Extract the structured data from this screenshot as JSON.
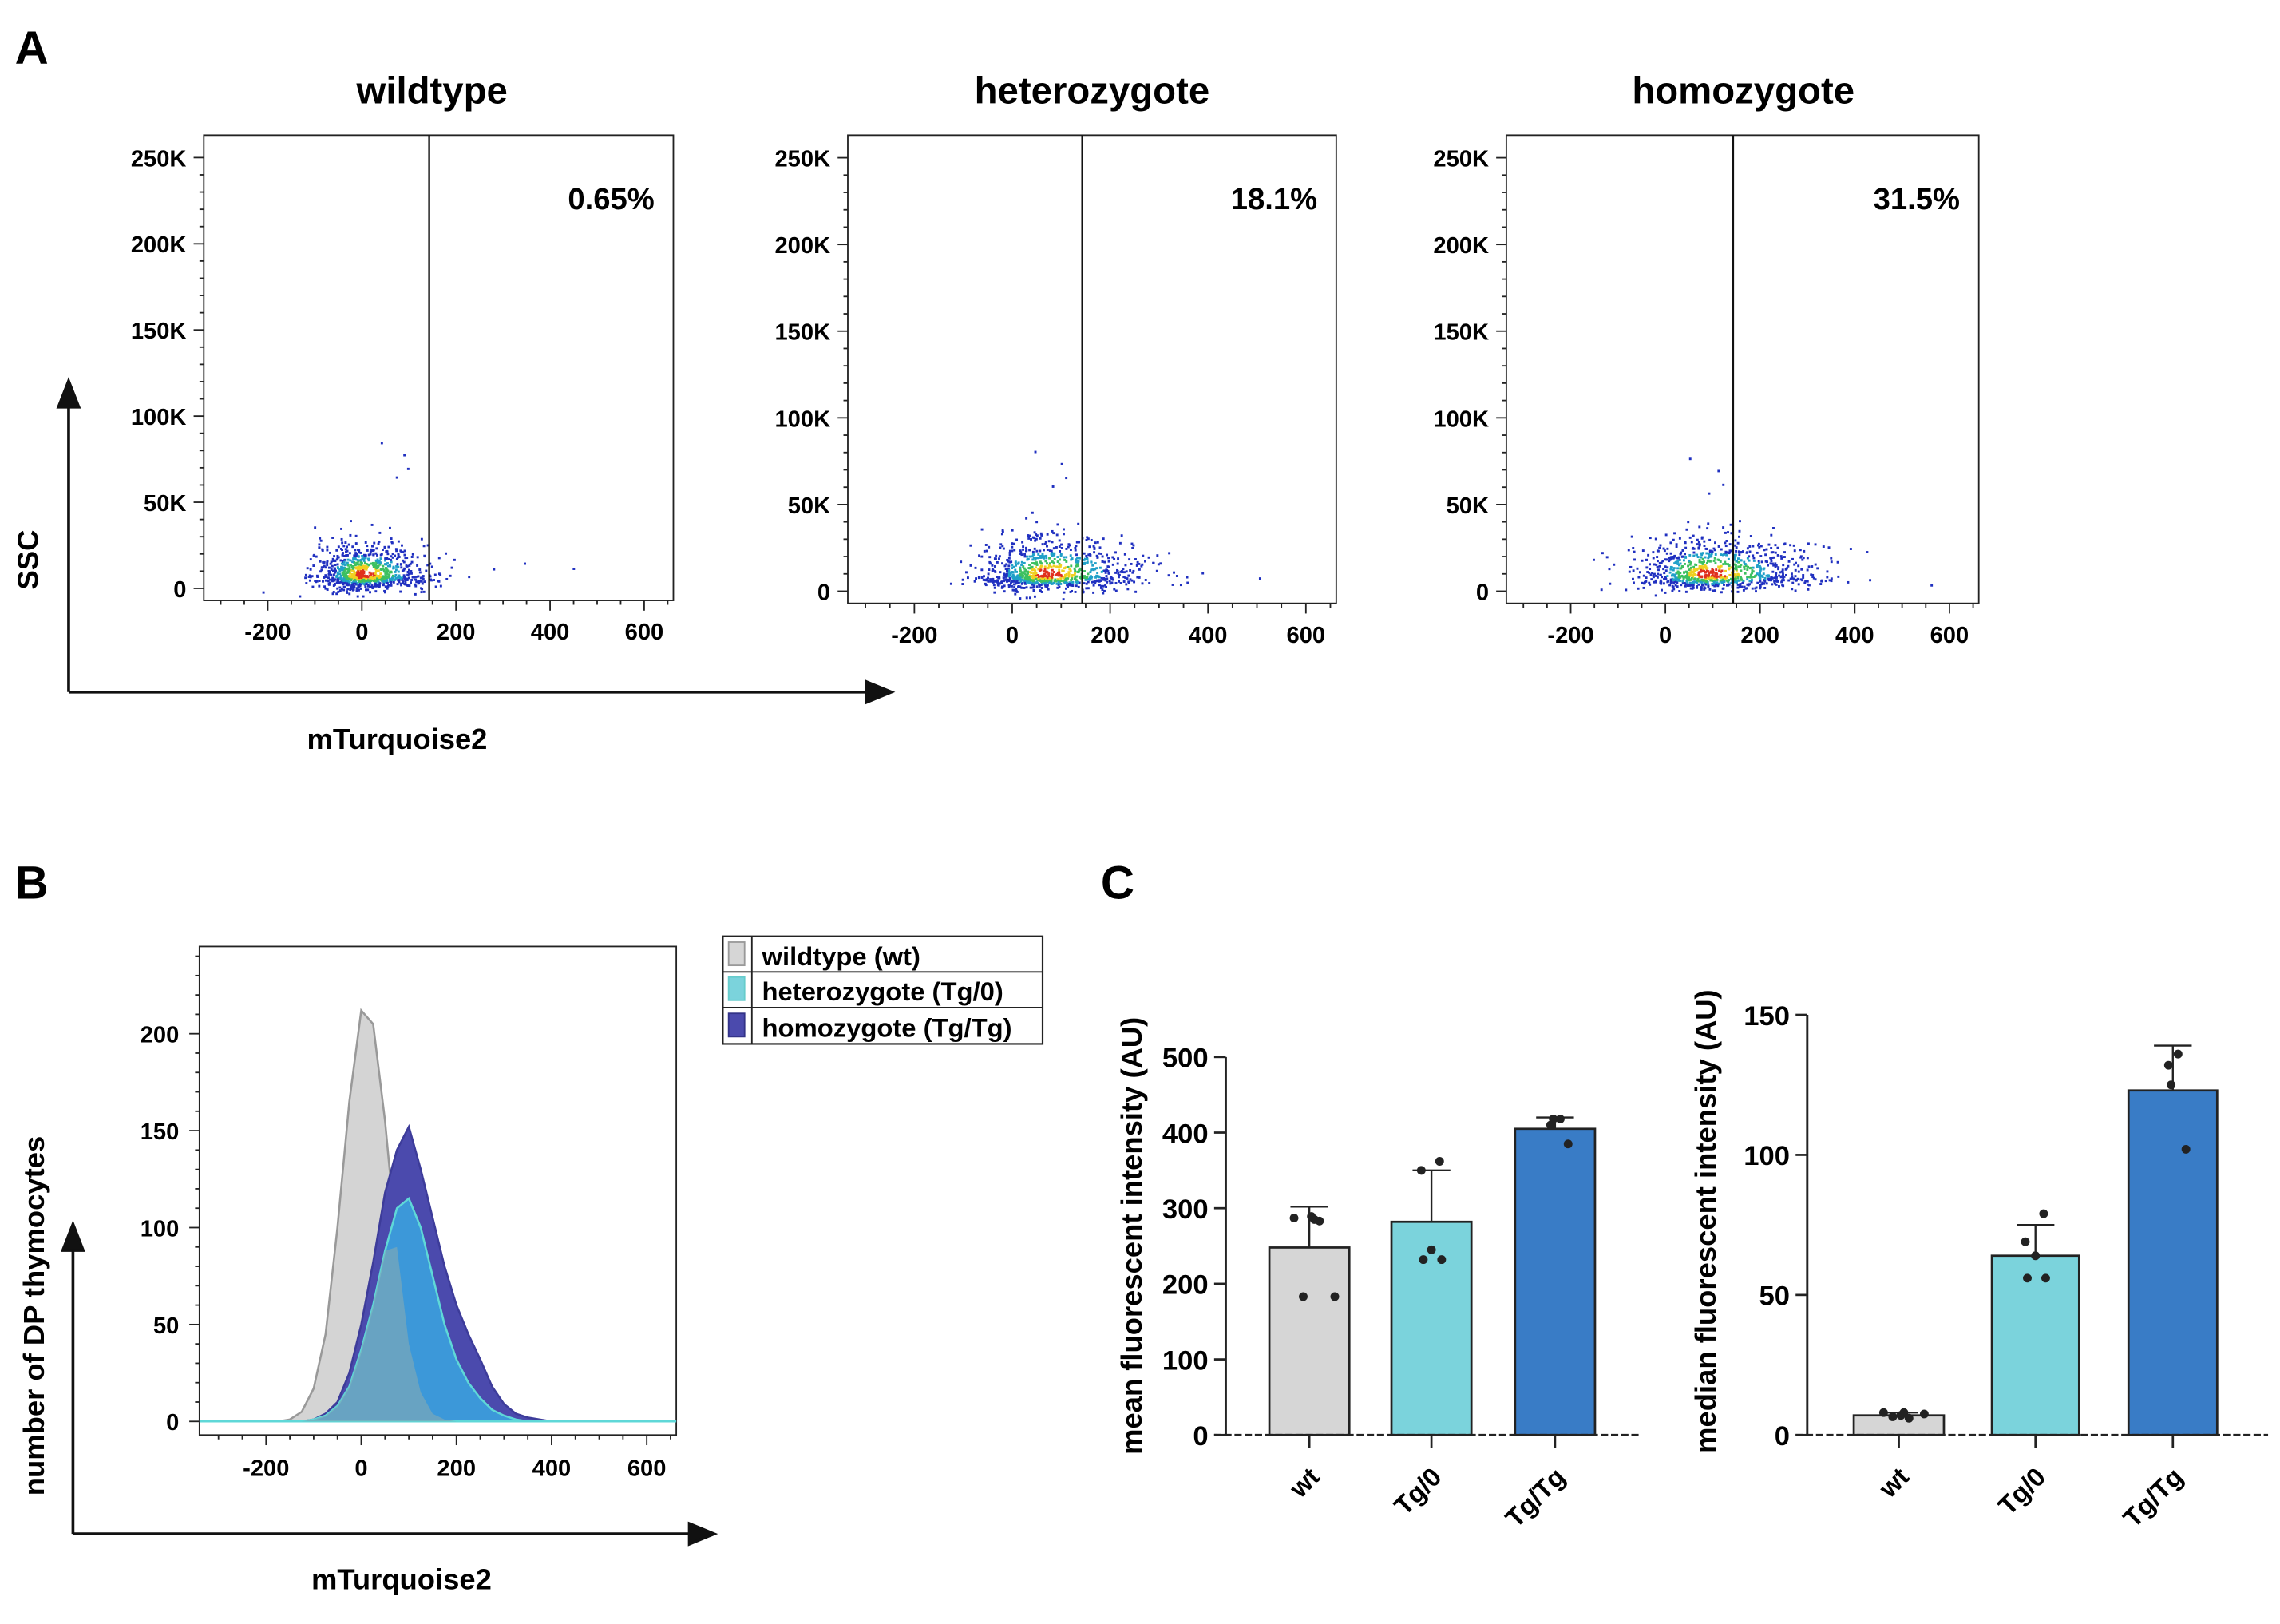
{
  "panel_labels": {
    "a": "A",
    "b": "B",
    "c": "C"
  },
  "colors": {
    "wt": "#d6d6d6",
    "het": "#7bd3dc",
    "homo": "#397cc6",
    "homo_hist": "#4b4aad",
    "het_hist": "#4aabe2"
  },
  "chart_data": [
    {
      "type": "scatter",
      "panel": "A",
      "y_axis_label": "SSC",
      "x_axis_label": "mTurquoise2",
      "x_ticks": [
        "-200",
        "0",
        "200",
        "400",
        "600"
      ],
      "x_tick_values": [
        -200,
        0,
        200,
        400,
        600
      ],
      "y_ticks": [
        "0",
        "50K",
        "100K",
        "150K",
        "200K",
        "250K"
      ],
      "y_tick_values": [
        0,
        50,
        100,
        150,
        200,
        250
      ],
      "xlim": [
        -336,
        662
      ],
      "ylim": [
        -7,
        263
      ],
      "gate_x": 143,
      "plots": [
        {
          "title": "wildtype",
          "percent": "0.65%",
          "center_x": 0,
          "spread_x": 55,
          "center_y": 8,
          "spread_y": 8
        },
        {
          "title": "heterozygote",
          "percent": "18.1%",
          "center_x": 70,
          "spread_x": 75,
          "center_y": 10,
          "spread_y": 9
        },
        {
          "title": "homozygote",
          "percent": "31.5%",
          "center_x": 90,
          "spread_x": 85,
          "center_y": 10,
          "spread_y": 9
        }
      ]
    },
    {
      "type": "area",
      "panel": "B",
      "ylabel": "number of DP thymocytes",
      "xlabel": "mTurquoise2",
      "x_ticks": [
        "-200",
        "0",
        "200",
        "400",
        "600"
      ],
      "x_tick_values": [
        -200,
        0,
        200,
        400,
        600
      ],
      "y_ticks": [
        "0",
        "50",
        "100",
        "150",
        "200"
      ],
      "y_tick_values": [
        0,
        50,
        100,
        150,
        200
      ],
      "xlim": [
        -340,
        662
      ],
      "ylim": [
        -7,
        245
      ],
      "x": [
        -200,
        -175,
        -150,
        -125,
        -100,
        -75,
        -50,
        -25,
        0,
        25,
        50,
        75,
        100,
        125,
        150,
        175,
        200,
        225,
        250,
        275,
        300,
        325,
        350,
        375,
        400,
        425,
        450
      ],
      "series": [
        {
          "name": "wildtype (wt)",
          "key": "wt",
          "values": [
            0,
            0,
            1,
            5,
            17,
            45,
            100,
            165,
            212,
            205,
            155,
            90,
            40,
            15,
            4,
            1,
            0,
            0,
            0,
            0,
            0,
            0,
            0,
            0,
            0,
            0,
            0
          ]
        },
        {
          "name": "homozygote (Tg/Tg)",
          "key": "homo",
          "values": [
            0,
            0,
            0,
            0,
            1,
            4,
            10,
            25,
            50,
            82,
            118,
            140,
            152,
            130,
            105,
            80,
            60,
            45,
            32,
            18,
            9,
            4,
            2,
            1,
            0,
            0,
            0
          ]
        },
        {
          "name": "heterozygote (Tg/0)",
          "key": "het",
          "values": [
            0,
            0,
            0,
            0,
            1,
            3,
            8,
            18,
            37,
            60,
            88,
            110,
            115,
            100,
            75,
            50,
            32,
            20,
            12,
            6,
            3,
            1,
            0,
            0,
            0,
            0,
            0
          ]
        }
      ],
      "legend": [
        "wildtype (wt)",
        "heterozygote (Tg/0)",
        "homozygote (Tg/Tg)"
      ],
      "legend_placement": "top-right"
    },
    {
      "type": "bar",
      "panel": "C",
      "ylabel": "mean fluorescent intensity (AU)",
      "categories": [
        "wt",
        "Tg/0",
        "Tg/Tg"
      ],
      "values": [
        248,
        282,
        405
      ],
      "error_upper": [
        302,
        350,
        420
      ],
      "points": [
        [
          283,
          287,
          289,
          285,
          183,
          183
        ],
        [
          362,
          350,
          245,
          232,
          232
        ],
        [
          418,
          410,
          418,
          385
        ]
      ],
      "y_ticks": [
        "0",
        "100",
        "200",
        "300",
        "400",
        "500"
      ],
      "y_tick_values": [
        0,
        100,
        200,
        300,
        400,
        500
      ],
      "ylim": [
        0,
        500
      ]
    },
    {
      "type": "bar",
      "panel": "C",
      "ylabel": "median fluorescent intensity (AU)",
      "categories": [
        "wt",
        "Tg/0",
        "Tg/Tg"
      ],
      "values": [
        7,
        64,
        123
      ],
      "error_upper": [
        8,
        75,
        139
      ],
      "points": [
        [
          6,
          8,
          7,
          8,
          6.5,
          7.5
        ],
        [
          79,
          69,
          64,
          56,
          56
        ],
        [
          136,
          132,
          125,
          102
        ]
      ],
      "y_ticks": [
        "0",
        "50",
        "100",
        "150"
      ],
      "y_tick_values": [
        0,
        50,
        100,
        150
      ],
      "ylim": [
        0,
        150
      ]
    }
  ]
}
